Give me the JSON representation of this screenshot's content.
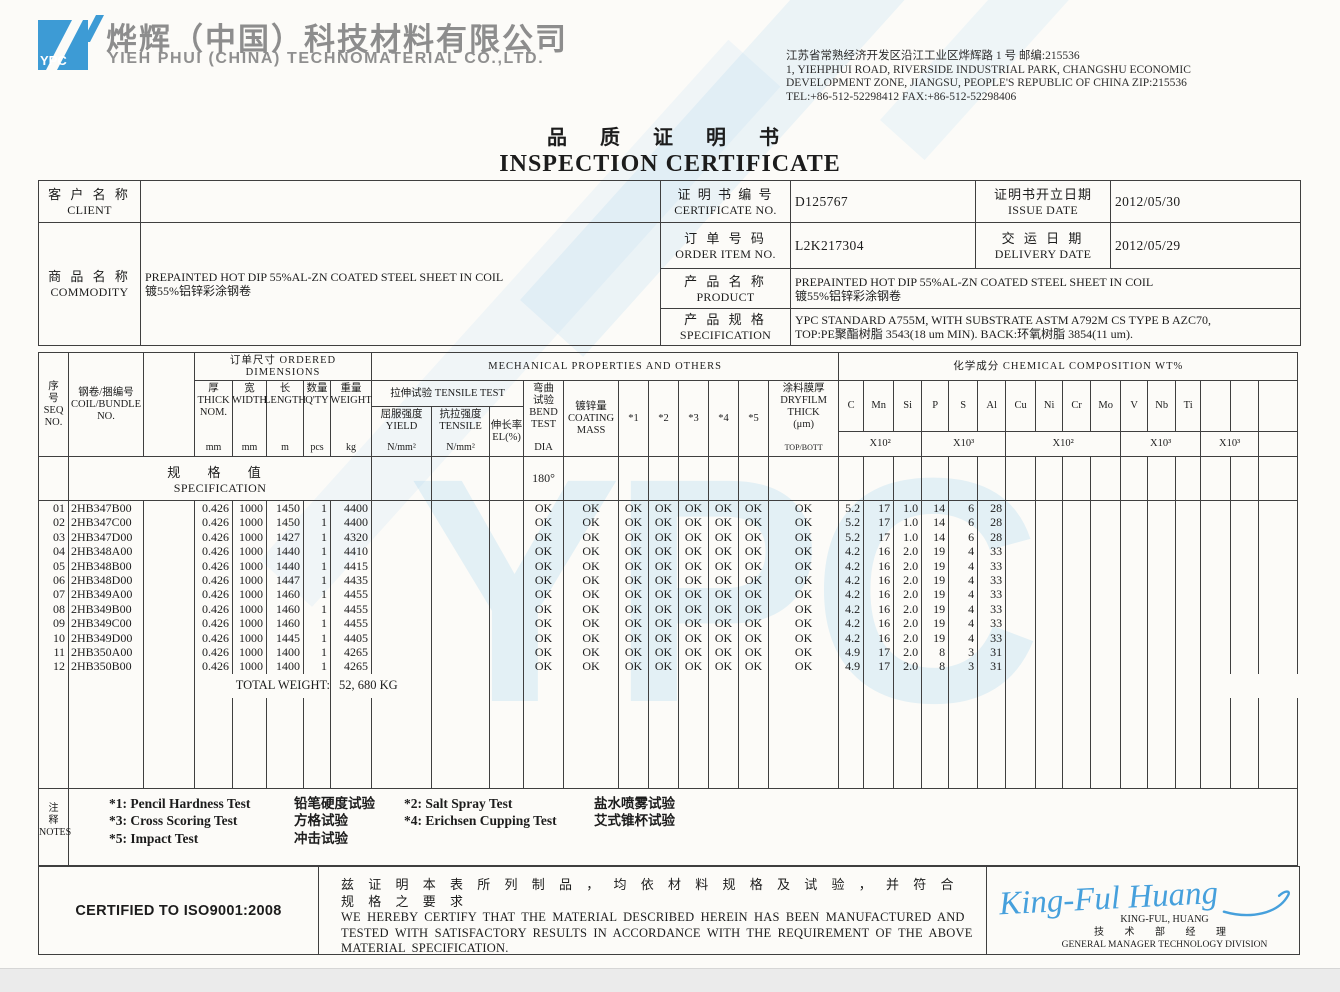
{
  "header": {
    "logo_text": "YPC",
    "company_zh": "烨辉（中国）科技材料有限公司",
    "company_en": "YIEH PHUI (CHINA) TECHNOMATERIAL CO.,LTD.",
    "address": "江苏省常熟经济开发区沿江工业区烨辉路 1 号 邮编:215536\n1, YIEHPHUI ROAD, RIVERSIDE INDUSTRIAL PARK, CHANGSHU ECONOMIC\nDEVELOPMENT ZONE, JIANGSU, PEOPLE'S REPUBLIC OF CHINA ZIP:215536\nTEL:+86-512-52298412  FAX:+86-512-52298406",
    "watermark_text": "YPC"
  },
  "title": {
    "zh": "品 质 证 明 书",
    "en": "INSPECTION CERTIFICATE"
  },
  "info": {
    "client_label_zh": "客 户 名 称",
    "client_label_en": "CLIENT",
    "client_value": "",
    "commodity_label_zh": "商 品 名 称",
    "commodity_label_en": "COMMODITY",
    "commodity_value_en": "PREPAINTED HOT DIP 55%AL-ZN COATED STEEL SHEET IN COIL",
    "commodity_value_zh": "镀55%铝锌彩涂钢卷",
    "certificate_label_zh": "证 明 书 编 号",
    "certificate_label_en": "CERTIFICATE NO.",
    "certificate_no": "D125767",
    "issue_label_zh": "证明书开立日期",
    "issue_label_en": "ISSUE DATE",
    "issue_date": "2012/05/30",
    "order_label_zh": "订 单 号 码",
    "order_label_en": "ORDER ITEM NO.",
    "order_no": "L2K217304",
    "delivery_label_zh": "交 运 日 期",
    "delivery_label_en": "DELIVERY DATE",
    "delivery_date": "2012/05/29",
    "product_label_zh": "产 品 名 称",
    "product_label_en": "PRODUCT",
    "product_value_en": "PREPAINTED HOT DIP 55%AL-ZN COATED STEEL SHEET IN COIL",
    "product_value_zh": "镀55%铝锌彩涂钢卷",
    "spec_label_zh": "产 品 规 格",
    "spec_label_en": "SPECIFICATION",
    "spec_value_line1": "YPC STANDARD A755M, WITH SUBSTRATE ASTM A792M CS TYPE B AZC70,",
    "spec_value_line2": "TOP:PE聚酯树脂 3543(18 um MIN).   BACK:环氧树脂 3854(11 um)."
  },
  "main_table": {
    "h": {
      "group_dims": "订单尺寸 ORDERED DIMENSIONS",
      "group_mech": "MECHANICAL PROPERTIES AND OTHERS",
      "group_chem": "化学成分 CHEMICAL COMPOSITION WT%",
      "seq": "序\n号\nSEQ\nNO.",
      "coil": "钢卷/捆编号\nCOIL/BUNDLE\nNO.",
      "thick_label": "厚\nTHICK\nNOM.",
      "thick_unit": "mm",
      "width_label": "宽\nWIDTH",
      "width_unit": "mm",
      "length_label": "长\nLENGTH",
      "length_unit": "m",
      "qty_label": "数量\nQ'TY",
      "qty_unit": "pcs",
      "weight_label": "重量\nWEIGHT",
      "weight_unit": "kg",
      "tensile_group": "拉伸试验 TENSILE TEST",
      "yield_label": "屈服强度\nYIELD",
      "yield_unit": "N/mm²",
      "tensile_label": "抗拉强度\nTENSILE",
      "tensile_unit": "N/mm²",
      "el_label": "伸长率\nEL(%)",
      "bend_label": "弯曲\n试验\nBEND\nTEST",
      "bend_dia": "DIA",
      "coating_label": "镀锌量\nCOATING\nMASS",
      "star1": "*1",
      "star2": "*2",
      "star3": "*3",
      "star4": "*4",
      "star5": "*5",
      "dryfilm_label": "涂料膜厚\nDRYFILM\nTHICK\n(μm)",
      "dryfilm_sub": "TOP/BOTT",
      "elements": [
        "C",
        "Mn",
        "Si",
        "P",
        "S",
        "Al",
        "Cu",
        "Ni",
        "Cr",
        "Mo",
        "V",
        "Nb",
        "Ti"
      ],
      "mult1": "X10²",
      "mult2": "X10³",
      "mult3": "X10²",
      "mult4": "X10³",
      "mult5": "X10³"
    },
    "spec_row": {
      "label_zh": "规 格 值",
      "label_en": "SPECIFICATION",
      "bend_value": "180°"
    },
    "rows": [
      {
        "seq": "01",
        "coil": "2HB347B00",
        "thick": "0.426",
        "width": "1000",
        "length": "1450",
        "qty": "1",
        "weight": "4400",
        "bend": "OK",
        "coating": "OK",
        "s1": "OK",
        "s2": "OK",
        "s3": "OK",
        "s4": "OK",
        "s5": "OK",
        "dryfilm": "OK",
        "c": "5.2",
        "mn": "17",
        "si": "1.0",
        "p": "14",
        "s": "6",
        "al": "28"
      },
      {
        "seq": "02",
        "coil": "2HB347C00",
        "thick": "0.426",
        "width": "1000",
        "length": "1450",
        "qty": "1",
        "weight": "4400",
        "bend": "OK",
        "coating": "OK",
        "s1": "OK",
        "s2": "OK",
        "s3": "OK",
        "s4": "OK",
        "s5": "OK",
        "dryfilm": "OK",
        "c": "5.2",
        "mn": "17",
        "si": "1.0",
        "p": "14",
        "s": "6",
        "al": "28"
      },
      {
        "seq": "03",
        "coil": "2HB347D00",
        "thick": "0.426",
        "width": "1000",
        "length": "1427",
        "qty": "1",
        "weight": "4320",
        "bend": "OK",
        "coating": "OK",
        "s1": "OK",
        "s2": "OK",
        "s3": "OK",
        "s4": "OK",
        "s5": "OK",
        "dryfilm": "OK",
        "c": "5.2",
        "mn": "17",
        "si": "1.0",
        "p": "14",
        "s": "6",
        "al": "28"
      },
      {
        "seq": "04",
        "coil": "2HB348A00",
        "thick": "0.426",
        "width": "1000",
        "length": "1440",
        "qty": "1",
        "weight": "4410",
        "bend": "OK",
        "coating": "OK",
        "s1": "OK",
        "s2": "OK",
        "s3": "OK",
        "s4": "OK",
        "s5": "OK",
        "dryfilm": "OK",
        "c": "4.2",
        "mn": "16",
        "si": "2.0",
        "p": "19",
        "s": "4",
        "al": "33"
      },
      {
        "seq": "05",
        "coil": "2HB348B00",
        "thick": "0.426",
        "width": "1000",
        "length": "1440",
        "qty": "1",
        "weight": "4415",
        "bend": "OK",
        "coating": "OK",
        "s1": "OK",
        "s2": "OK",
        "s3": "OK",
        "s4": "OK",
        "s5": "OK",
        "dryfilm": "OK",
        "c": "4.2",
        "mn": "16",
        "si": "2.0",
        "p": "19",
        "s": "4",
        "al": "33"
      },
      {
        "seq": "06",
        "coil": "2HB348D00",
        "thick": "0.426",
        "width": "1000",
        "length": "1447",
        "qty": "1",
        "weight": "4435",
        "bend": "OK",
        "coating": "OK",
        "s1": "OK",
        "s2": "OK",
        "s3": "OK",
        "s4": "OK",
        "s5": "OK",
        "dryfilm": "OK",
        "c": "4.2",
        "mn": "16",
        "si": "2.0",
        "p": "19",
        "s": "4",
        "al": "33"
      },
      {
        "seq": "07",
        "coil": "2HB349A00",
        "thick": "0.426",
        "width": "1000",
        "length": "1460",
        "qty": "1",
        "weight": "4455",
        "bend": "OK",
        "coating": "OK",
        "s1": "OK",
        "s2": "OK",
        "s3": "OK",
        "s4": "OK",
        "s5": "OK",
        "dryfilm": "OK",
        "c": "4.2",
        "mn": "16",
        "si": "2.0",
        "p": "19",
        "s": "4",
        "al": "33"
      },
      {
        "seq": "08",
        "coil": "2HB349B00",
        "thick": "0.426",
        "width": "1000",
        "length": "1460",
        "qty": "1",
        "weight": "4455",
        "bend": "OK",
        "coating": "OK",
        "s1": "OK",
        "s2": "OK",
        "s3": "OK",
        "s4": "OK",
        "s5": "OK",
        "dryfilm": "OK",
        "c": "4.2",
        "mn": "16",
        "si": "2.0",
        "p": "19",
        "s": "4",
        "al": "33"
      },
      {
        "seq": "09",
        "coil": "2HB349C00",
        "thick": "0.426",
        "width": "1000",
        "length": "1460",
        "qty": "1",
        "weight": "4455",
        "bend": "OK",
        "coating": "OK",
        "s1": "OK",
        "s2": "OK",
        "s3": "OK",
        "s4": "OK",
        "s5": "OK",
        "dryfilm": "OK",
        "c": "4.2",
        "mn": "16",
        "si": "2.0",
        "p": "19",
        "s": "4",
        "al": "33"
      },
      {
        "seq": "10",
        "coil": "2HB349D00",
        "thick": "0.426",
        "width": "1000",
        "length": "1445",
        "qty": "1",
        "weight": "4405",
        "bend": "OK",
        "coating": "OK",
        "s1": "OK",
        "s2": "OK",
        "s3": "OK",
        "s4": "OK",
        "s5": "OK",
        "dryfilm": "OK",
        "c": "4.2",
        "mn": "16",
        "si": "2.0",
        "p": "19",
        "s": "4",
        "al": "33"
      },
      {
        "seq": "11",
        "coil": "2HB350A00",
        "thick": "0.426",
        "width": "1000",
        "length": "1400",
        "qty": "1",
        "weight": "4265",
        "bend": "OK",
        "coating": "OK",
        "s1": "OK",
        "s2": "OK",
        "s3": "OK",
        "s4": "OK",
        "s5": "OK",
        "dryfilm": "OK",
        "c": "4.9",
        "mn": "17",
        "si": "2.0",
        "p": "8",
        "s": "3",
        "al": "31"
      },
      {
        "seq": "12",
        "coil": "2HB350B00",
        "thick": "0.426",
        "width": "1000",
        "length": "1400",
        "qty": "1",
        "weight": "4265",
        "bend": "OK",
        "coating": "OK",
        "s1": "OK",
        "s2": "OK",
        "s3": "OK",
        "s4": "OK",
        "s5": "OK",
        "dryfilm": "OK",
        "c": "4.9",
        "mn": "17",
        "si": "2.0",
        "p": "8",
        "s": "3",
        "al": "31"
      }
    ],
    "total_label": "TOTAL WEIGHT:",
    "total_value": "52, 680 KG"
  },
  "notes": {
    "label_zh": "注\n释",
    "label_en": "NOTES",
    "items": [
      {
        "en": "*1: Pencil Hardness Test",
        "zh": "铅笔硬度试验"
      },
      {
        "en": "*2: Salt Spray Test",
        "zh": "盐水喷雾试验"
      },
      {
        "en": "*3: Cross Scoring Test",
        "zh": "方格试验"
      },
      {
        "en": "*4: Erichsen Cupping Test",
        "zh": "艾式锥杯试验"
      },
      {
        "en": "*5: Impact Test",
        "zh": "冲击试验"
      }
    ]
  },
  "footer": {
    "iso": "CERTIFIED TO ISO9001:2008",
    "certify_zh": "兹 证 明 本 表 所 列 制 品 ， 均 依 材 料 规 格 及 试 验 ， 并 符 合 规 格 之 要 求",
    "certify_en1": "WE HEREBY CERTIFY THAT THE MATERIAL DESCRIBED HEREIN HAS BEEN MANUFACTURED AND",
    "certify_en2": "TESTED WITH SATISFACTORY RESULTS IN ACCORDANCE WITH THE REQUIREMENT OF THE ABOVE",
    "certify_en3": "MATERIAL SPECIFICATION.",
    "signature_script": "King-Ful Huang",
    "signer_name": "KING-FUL, HUANG",
    "signer_title_zh": "技 术 部 经 理",
    "signer_title_en": "GENERAL MANAGER TECHNOLOGY DIVISION"
  },
  "colors": {
    "logo_blue": "#3d9bd5",
    "signature_blue": "#46a0dc",
    "watermark_blue": "#a0d2ee"
  }
}
